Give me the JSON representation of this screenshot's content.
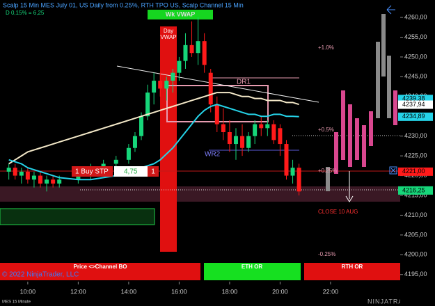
{
  "chart_data": {
    "type": "candlestick",
    "title": "Scalp 15 Min MES July 01, US Daily from 0.25%, RTH TPO US, Scalp Channel 15 Min",
    "subtitle": "D 0,15% = 6,25",
    "up_color": "#16d67a",
    "down_color": "#ff1a1a",
    "x": [
      9.25,
      9.5,
      9.75,
      10,
      10.25,
      10.5,
      10.75,
      11,
      11.25,
      12,
      12.5,
      13,
      13.5,
      14,
      14.25,
      14.5,
      14.75,
      15,
      15.25,
      15.5,
      15.75,
      16,
      16.25,
      16.5,
      16.75,
      17,
      17.25,
      17.5,
      17.75,
      18,
      18.25,
      18.5,
      18.75,
      19,
      19.25,
      19.5,
      19.75,
      20,
      20.25,
      20.5,
      20.75
    ],
    "open": [
      4221,
      4222,
      4220,
      4221,
      4219,
      4220,
      4218,
      4219,
      4218,
      4219,
      4221,
      4222,
      4223,
      4224,
      4227,
      4230,
      4235,
      4241,
      4244,
      4242,
      4244,
      4246,
      4249,
      4253,
      4251,
      4254,
      4246,
      4238,
      4233,
      4231,
      4228,
      4230,
      4227,
      4230,
      4233,
      4232,
      4233,
      4232,
      4228,
      4220,
      4222
    ],
    "high": [
      4223,
      4223,
      4222,
      4222,
      4221,
      4221,
      4220,
      4220,
      4220,
      4222,
      4223,
      4224,
      4225,
      4228,
      4231,
      4236,
      4243,
      4246,
      4246,
      4245,
      4247,
      4250,
      4256,
      4259,
      4260,
      4256,
      4247,
      4240,
      4237,
      4234,
      4232,
      4233,
      4231,
      4234,
      4235,
      4234,
      4234,
      4233,
      4229,
      4224,
      4223
    ],
    "low": [
      4219,
      4219,
      4218,
      4218,
      4217,
      4217,
      4216,
      4217,
      4217,
      4218,
      4219,
      4220,
      4221,
      4223,
      4226,
      4229,
      4234,
      4238,
      4240,
      4239,
      4241,
      4244,
      4247,
      4250,
      4248,
      4246,
      4236,
      4231,
      4229,
      4226,
      4224,
      4225,
      4226,
      4228,
      4230,
      4230,
      4228,
      4225,
      4219,
      4218,
      4215
    ],
    "close": [
      4222,
      4220,
      4221,
      4219,
      4220,
      4218,
      4219,
      4218,
      4219,
      4221,
      4222,
      4223,
      4224,
      4227,
      4230,
      4235,
      4241,
      4244,
      4242,
      4244,
      4246,
      4249,
      4253,
      4251,
      4254,
      4248,
      4238,
      4233,
      4231,
      4228,
      4230,
      4227,
      4230,
      4233,
      4232,
      4233,
      4229,
      4228,
      4220,
      4222,
      4216
    ],
    "lines": [
      {
        "color": "#f3e8c8",
        "values": [
          4223,
          4224,
          4225,
          4226,
          4226.5,
          4227,
          4227.5,
          4228,
          4228.5,
          4230,
          4231,
          4232,
          4233,
          4234,
          4234.5,
          4235,
          4235.5,
          4236,
          4236.5,
          4237,
          4237.5,
          4238,
          4238.5,
          4239,
          4239.5,
          4240,
          4240.5,
          4241,
          4241,
          4241,
          4240.5,
          4240,
          4240,
          4239.5,
          4239.5,
          4239,
          4239,
          4239,
          4238.5,
          4238.5,
          4238
        ]
      },
      {
        "color": "#25d3e8",
        "values": [
          4224,
          4223.5,
          4223,
          4222,
          4221.5,
          4221,
          4220.5,
          4220,
          4219.5,
          4219,
          4219,
          4219.5,
          4220,
          4221,
          4221.5,
          4222,
          4222.5,
          4223,
          4224,
          4225.5,
          4227,
          4229,
          4231,
          4233,
          4235,
          4236.5,
          4237.5,
          4238,
          4237.5,
          4237,
          4236.5,
          4236,
          4235.5,
          4235.5,
          4235,
          4235,
          4235.5,
          4235.5,
          4235,
          4235,
          4234.9
        ]
      }
    ],
    "xlim": [
      8.9,
      24.76
    ],
    "xticks": [
      {
        "value": 10,
        "label": "10:00"
      },
      {
        "value": 12,
        "label": "12:00"
      },
      {
        "value": 14,
        "label": "14:00"
      },
      {
        "value": 16,
        "label": "16:00"
      },
      {
        "value": 18,
        "label": "18:00"
      },
      {
        "value": 20,
        "label": "20:00"
      },
      {
        "value": 22,
        "label": "22:00"
      }
    ],
    "ylim": [
      4193.2,
      4264.4
    ],
    "yticks": [
      {
        "value": 4195,
        "label": "4195,00"
      },
      {
        "value": 4200,
        "label": "4200,00"
      },
      {
        "value": 4205,
        "label": "4205,00"
      },
      {
        "value": 4210,
        "label": "4210,00"
      },
      {
        "value": 4215,
        "label": "4215,00"
      },
      {
        "value": 4220,
        "label": "4220,00"
      },
      {
        "value": 4225,
        "label": "4225,00"
      },
      {
        "value": 4230,
        "label": "4230,00"
      },
      {
        "value": 4235,
        "label": "4235,00"
      },
      {
        "value": 4240,
        "label": "4240,00"
      },
      {
        "value": 4245,
        "label": "4245,00"
      },
      {
        "value": 4250,
        "label": "4250,00"
      },
      {
        "value": 4255,
        "label": "4255,00"
      },
      {
        "value": 4260,
        "label": "4260,00"
      }
    ],
    "price_markers": [
      {
        "value": 4239.38,
        "label": "4239,38",
        "color": "#25d3e8"
      },
      {
        "value": 4237.94,
        "label": "4237,94",
        "color": "#ffffff"
      },
      {
        "value": 4234.89,
        "label": "4234,89",
        "color": "#25d3e8"
      },
      {
        "value": 4221.0,
        "label": "4221,00",
        "color": "#ff1a1a"
      },
      {
        "value": 4216.25,
        "label": "4216,25",
        "color": "#16d67a"
      }
    ],
    "annotations": {
      "wk_vwap": "Wk VWAP",
      "day": "Day",
      "vwap": "VWAP",
      "plus_1": "+1.0%",
      "dr1": "DR1",
      "plus_05": "+0.5%",
      "wr2": "WR2",
      "plus_025": "+0.25%",
      "close": "CLOSE 10 AUG",
      "minus_025": "-0.25%",
      "order": "1 Buy STP",
      "order_price": "4,75",
      "order_qty": "1",
      "channel_bo": "Price <>Channel BO",
      "eth_or": "ETH OR",
      "rth_or": "RTH OR",
      "copyright": "© 2022 NinjaTrader, LLC",
      "instrument": "MES 15 Minute",
      "brand": "NINJATRADER"
    }
  }
}
